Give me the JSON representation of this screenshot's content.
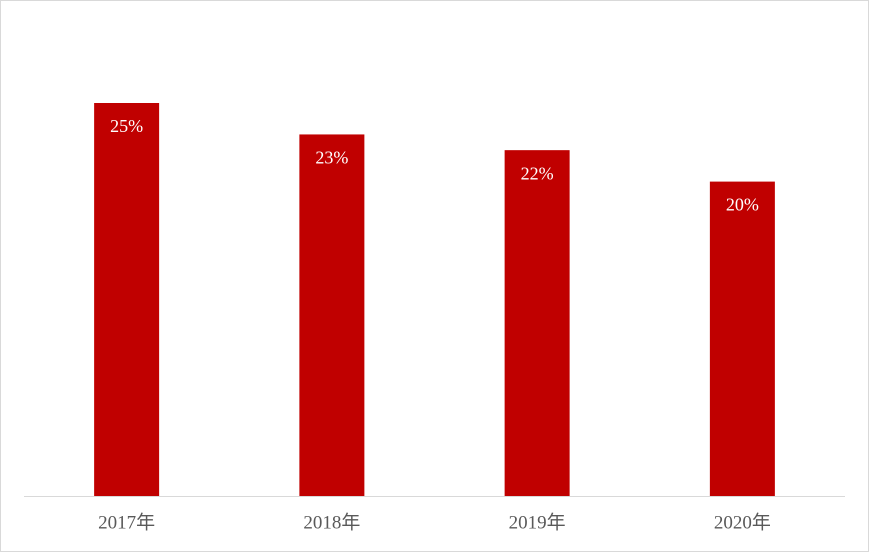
{
  "chart_data": {
    "type": "bar",
    "categories": [
      "2017年",
      "2018年",
      "2019年",
      "2020年"
    ],
    "values": [
      25,
      23,
      22,
      20
    ],
    "value_labels": [
      "25%",
      "23%",
      "22%",
      "20%"
    ],
    "color": "#c00000"
  }
}
